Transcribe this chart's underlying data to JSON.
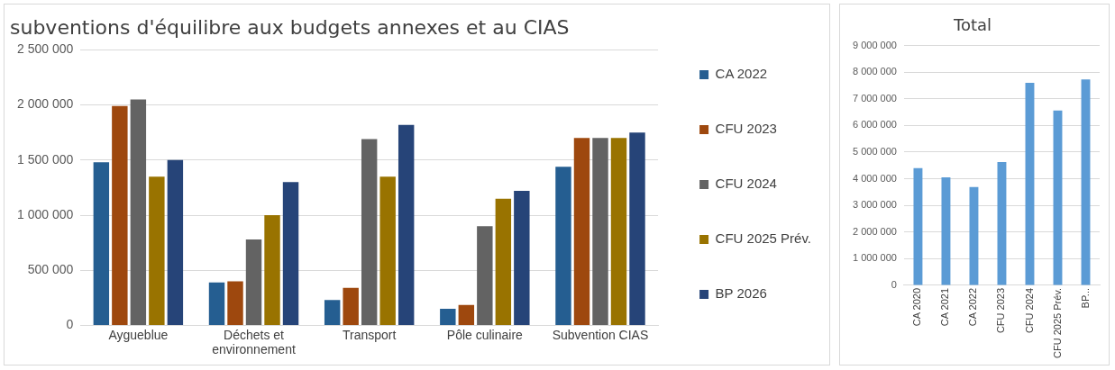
{
  "chart_data": [
    {
      "type": "bar",
      "title": "subventions d'équilibre aux budgets annexes et au CIAS",
      "categories": [
        "Aygueblue",
        "Déchets et environnement",
        "Transport",
        "Pôle culinaire",
        "Subvention CIAS"
      ],
      "series": [
        {
          "name": "CA 2022",
          "color": "#255e91",
          "values": [
            1480000,
            390000,
            230000,
            150000,
            1440000
          ]
        },
        {
          "name": "CFU 2023",
          "color": "#9e480e",
          "values": [
            1990000,
            400000,
            340000,
            185000,
            1700000
          ]
        },
        {
          "name": "CFU 2024",
          "color": "#636363",
          "values": [
            2050000,
            780000,
            1690000,
            900000,
            1700000
          ]
        },
        {
          "name": "CFU 2025 Prév.",
          "color": "#997300",
          "values": [
            1350000,
            1000000,
            1350000,
            1150000,
            1700000
          ]
        },
        {
          "name": "BP 2026",
          "color": "#264478",
          "values": [
            1500000,
            1300000,
            1820000,
            1220000,
            1750000
          ]
        }
      ],
      "ylim": [
        0,
        2500000
      ],
      "yticks": [
        0,
        {
          "value": 500000,
          "label": "500 000"
        },
        {
          "value": 1000000,
          "label": "1 000 000"
        },
        {
          "value": 1500000,
          "label": "1 500 000"
        },
        {
          "value": 2000000,
          "label": "2 000 000"
        },
        {
          "value": 2500000,
          "label": "2 500 000"
        }
      ],
      "grid": "y",
      "legend": "right"
    },
    {
      "type": "bar",
      "title": "Total",
      "categories": [
        "CA 2020",
        "CA 2021",
        "CA 2022",
        "CFU 2023",
        "CFU 2024",
        "CFU 2025 Prév.",
        "BP..."
      ],
      "values": [
        4400000,
        4050000,
        3690000,
        4630000,
        7600000,
        6560000,
        7730000
      ],
      "color": "#5b9bd5",
      "ylim": [
        0,
        9000000
      ],
      "yticks": [
        0,
        {
          "value": 1000000,
          "label": "1 000 000"
        },
        {
          "value": 2000000,
          "label": "2 000 000"
        },
        {
          "value": 3000000,
          "label": "3 000 000"
        },
        {
          "value": 4000000,
          "label": "4 000 000"
        },
        {
          "value": 5000000,
          "label": "5 000 000"
        },
        {
          "value": 6000000,
          "label": "6 000 000"
        },
        {
          "value": 7000000,
          "label": "7 000 000"
        },
        {
          "value": 8000000,
          "label": "8 000 000"
        },
        {
          "value": 9000000,
          "label": "9 000 000"
        }
      ],
      "grid": "y"
    }
  ]
}
